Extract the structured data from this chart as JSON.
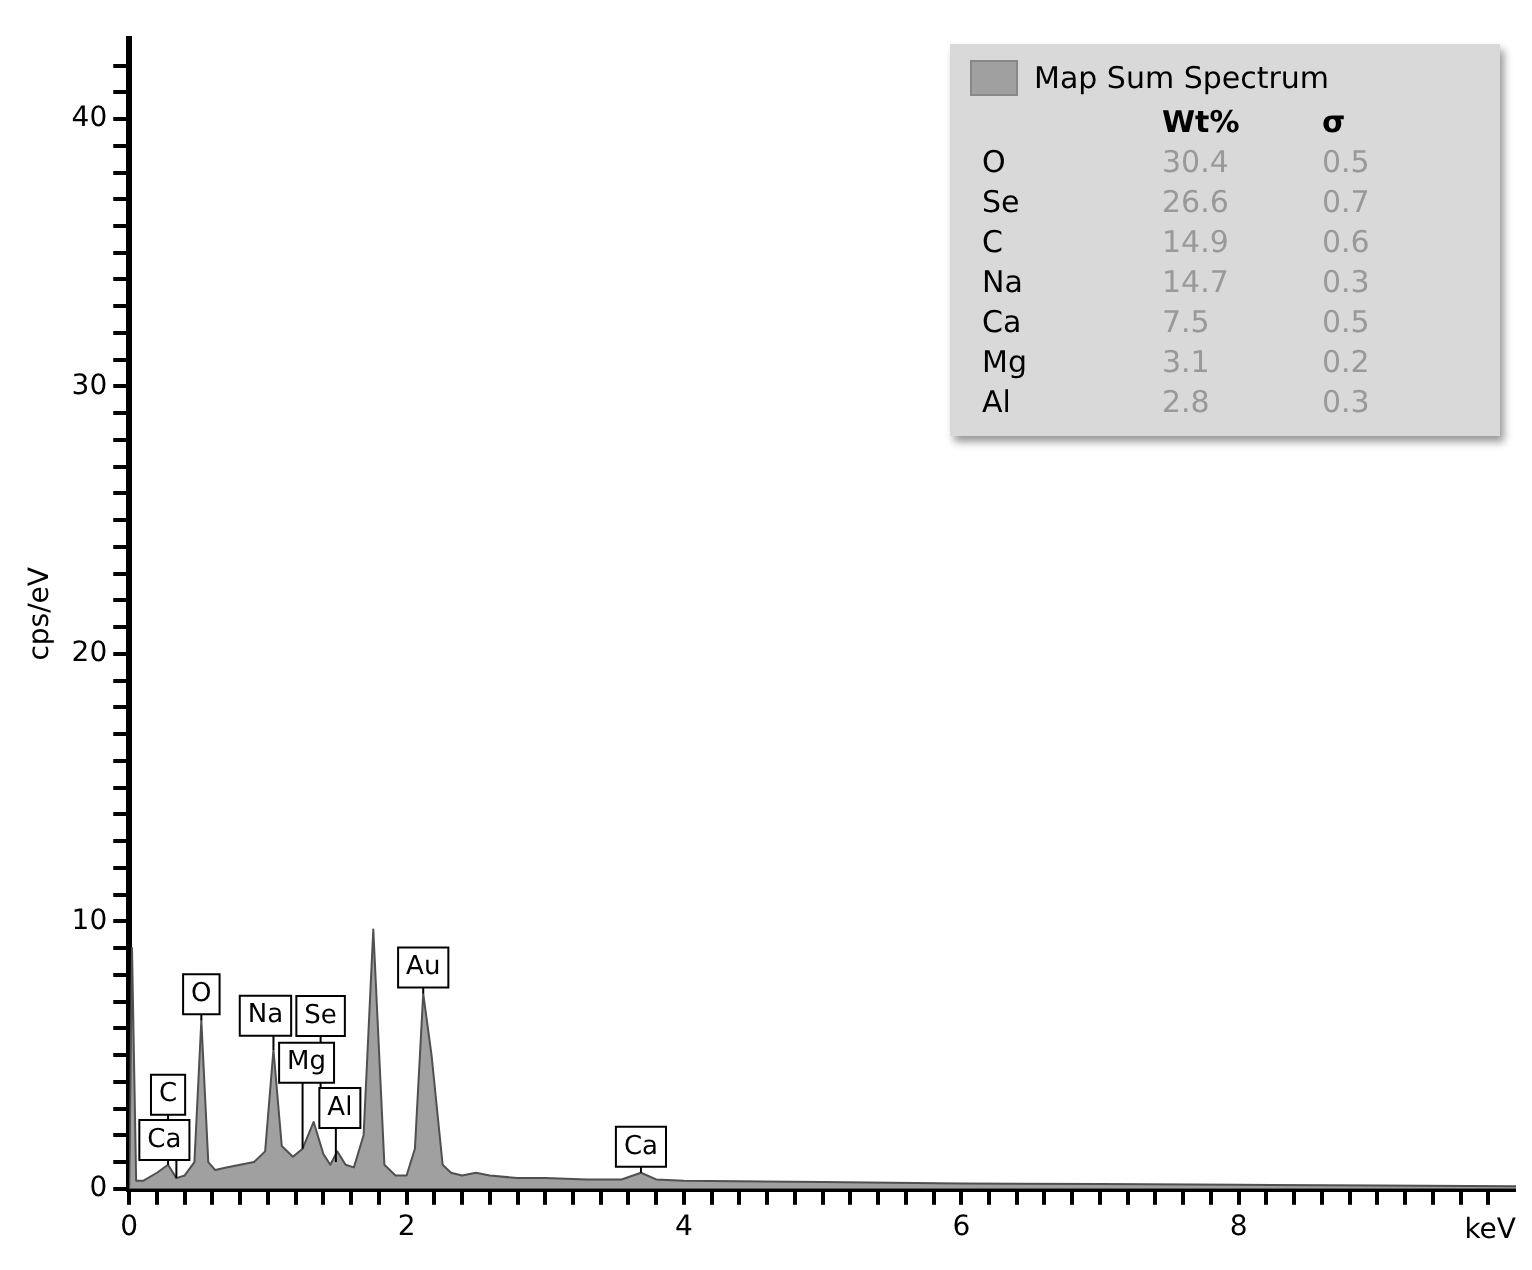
{
  "chart_data": {
    "type": "area",
    "xlabel": "keV",
    "ylabel": "cps/eV",
    "legend": "top right",
    "grid": false,
    "xlim": [
      0,
      10
    ],
    "ylim": [
      0,
      43
    ],
    "xticks": [
      0,
      {
        "value": 0.2,
        "label": null
      },
      {
        "value": 0.4,
        "label": null
      },
      {
        "value": 0.6,
        "label": null
      },
      {
        "value": 0.8,
        "label": null
      },
      {
        "value": 1,
        "label": null
      },
      {
        "value": 1.2,
        "label": null
      },
      {
        "value": 1.4,
        "label": null
      },
      {
        "value": 1.6,
        "label": null
      },
      {
        "value": 1.8,
        "label": null
      },
      2,
      {
        "value": 2.2,
        "label": null
      },
      {
        "value": 2.4,
        "label": null
      },
      {
        "value": 2.6,
        "label": null
      },
      {
        "value": 2.8,
        "label": null
      },
      {
        "value": 3,
        "label": null
      },
      {
        "value": 3.2,
        "label": null
      },
      {
        "value": 3.4,
        "label": null
      },
      {
        "value": 3.6,
        "label": null
      },
      {
        "value": 3.8,
        "label": null
      },
      4,
      {
        "value": 4.2,
        "label": null
      },
      {
        "value": 4.4,
        "label": null
      },
      {
        "value": 4.6,
        "label": null
      },
      {
        "value": 4.8,
        "label": null
      },
      {
        "value": 5,
        "label": null
      },
      {
        "value": 5.2,
        "label": null
      },
      {
        "value": 5.4,
        "label": null
      },
      {
        "value": 5.6,
        "label": null
      },
      {
        "value": 5.8,
        "label": null
      },
      6,
      {
        "value": 6.2,
        "label": null
      },
      {
        "value": 6.4,
        "label": null
      },
      {
        "value": 6.6,
        "label": null
      },
      {
        "value": 6.8,
        "label": null
      },
      {
        "value": 7,
        "label": null
      },
      {
        "value": 7.2,
        "label": null
      },
      {
        "value": 7.4,
        "label": null
      },
      {
        "value": 7.6,
        "label": null
      },
      {
        "value": 7.8,
        "label": null
      },
      8,
      {
        "value": 8.2,
        "label": null
      },
      {
        "value": 8.4,
        "label": null
      },
      {
        "value": 8.6,
        "label": null
      },
      {
        "value": 8.8,
        "label": null
      },
      {
        "value": 9,
        "label": null
      },
      {
        "value": 9.2,
        "label": null
      },
      {
        "value": 9.4,
        "label": null
      },
      {
        "value": 9.6,
        "label": null
      },
      {
        "value": 9.8,
        "label": null
      }
    ],
    "yticks": [
      0,
      {
        "value": 1,
        "label": null
      },
      {
        "value": 2,
        "label": null
      },
      {
        "value": 3,
        "label": null
      },
      {
        "value": 4,
        "label": null
      },
      {
        "value": 5,
        "label": null
      },
      {
        "value": 6,
        "label": null
      },
      {
        "value": 7,
        "label": null
      },
      {
        "value": 8,
        "label": null
      },
      {
        "value": 9,
        "label": null
      },
      10,
      {
        "value": 11,
        "label": null
      },
      {
        "value": 12,
        "label": null
      },
      {
        "value": 13,
        "label": null
      },
      {
        "value": 14,
        "label": null
      },
      {
        "value": 15,
        "label": null
      },
      {
        "value": 16,
        "label": null
      },
      {
        "value": 17,
        "label": null
      },
      {
        "value": 18,
        "label": null
      },
      {
        "value": 19,
        "label": null
      },
      20,
      {
        "value": 21,
        "label": null
      },
      {
        "value": 22,
        "label": null
      },
      {
        "value": 23,
        "label": null
      },
      {
        "value": 24,
        "label": null
      },
      {
        "value": 25,
        "label": null
      },
      {
        "value": 26,
        "label": null
      },
      {
        "value": 27,
        "label": null
      },
      {
        "value": 28,
        "label": null
      },
      {
        "value": 29,
        "label": null
      },
      30,
      {
        "value": 31,
        "label": null
      },
      {
        "value": 32,
        "label": null
      },
      {
        "value": 33,
        "label": null
      },
      {
        "value": 34,
        "label": null
      },
      {
        "value": 35,
        "label": null
      },
      {
        "value": 36,
        "label": null
      },
      {
        "value": 37,
        "label": null
      },
      {
        "value": 38,
        "label": null
      },
      {
        "value": 39,
        "label": null
      },
      40,
      {
        "value": 41,
        "label": null
      },
      {
        "value": 42,
        "label": null
      }
    ],
    "series": [
      {
        "name": "Map Sum Spectrum",
        "color": "#a0a0a0",
        "x": [
          0,
          0.02,
          0.05,
          0.1,
          0.2,
          0.28,
          0.34,
          0.4,
          0.47,
          0.52,
          0.57,
          0.62,
          0.7,
          0.8,
          0.9,
          0.98,
          1.04,
          1.1,
          1.18,
          1.25,
          1.33,
          1.4,
          1.45,
          1.5,
          1.56,
          1.62,
          1.69,
          1.76,
          1.84,
          1.92,
          2.0,
          2.06,
          2.12,
          2.18,
          2.26,
          2.32,
          2.4,
          2.5,
          2.6,
          2.8,
          3.0,
          3.3,
          3.55,
          3.69,
          3.8,
          4.0,
          5.0,
          6.0,
          7.0,
          8.0,
          9.0,
          10.0
        ],
        "values": [
          0,
          9,
          0.3,
          0.3,
          0.6,
          0.9,
          0.4,
          0.5,
          1.0,
          6.3,
          1.0,
          0.7,
          0.8,
          0.9,
          1.0,
          1.4,
          5.2,
          1.6,
          1.2,
          1.5,
          2.5,
          1.3,
          0.9,
          1.4,
          0.9,
          0.8,
          2.0,
          9.7,
          0.9,
          0.5,
          0.5,
          1.5,
          7.3,
          5.0,
          0.9,
          0.6,
          0.5,
          0.6,
          0.5,
          0.4,
          0.4,
          0.35,
          0.35,
          0.6,
          0.35,
          0.3,
          0.25,
          0.2,
          0.18,
          0.15,
          0.12,
          0.1
        ]
      }
    ],
    "annotations": [
      "Wt%",
      "σ",
      "O",
      "30.4",
      "0.5",
      "Se",
      "26.6",
      "0.7",
      "C",
      "14.9",
      "0.6",
      "Na",
      "14.7",
      "0.3",
      "Ca",
      "7.5",
      "0.5",
      "Mg",
      "3.1",
      "0.2",
      "Al",
      "2.8",
      "0.3",
      {
        "text": "C",
        "x": 0.28,
        "y": 0.9
      },
      {
        "text": "Ca",
        "x": 0.34,
        "y": 0.4
      },
      {
        "text": "O",
        "x": 0.52,
        "y": 6.3
      },
      {
        "text": "Na",
        "x": 1.04,
        "y": 5.2
      },
      {
        "text": "Mg",
        "x": 1.25,
        "y": 1.5
      },
      {
        "text": "Se",
        "x": 1.38,
        "y": 2.5
      },
      {
        "text": "Al",
        "x": 1.49,
        "y": 1.0
      },
      {
        "text": "Au",
        "x": 2.12,
        "y": 7.3
      },
      {
        "text": "Ca",
        "x": 3.69,
        "y": 0.6
      }
    ]
  }
}
